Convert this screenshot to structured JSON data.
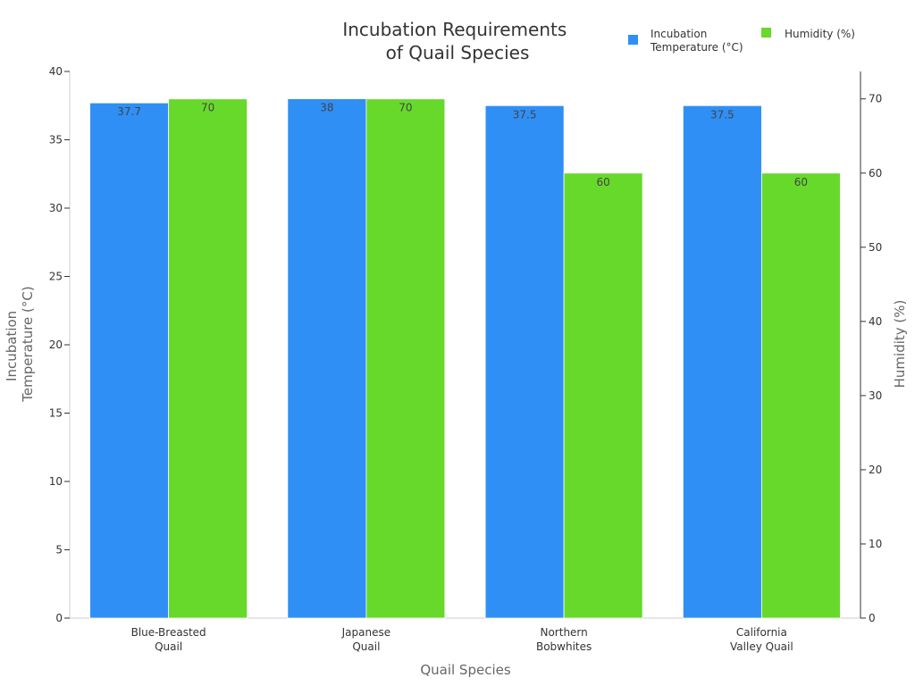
{
  "chart_data": {
    "type": "bar",
    "title": "Incubation Requirements of Quail Species",
    "title_lines": [
      "Incubation Requirements",
      "of Quail Species"
    ],
    "xlabel": "Quail Species",
    "categories": [
      "Blue-Breasted Quail",
      "Japanese Quail",
      "Northern Bobwhites",
      "California Valley Quail"
    ],
    "category_lines": [
      [
        "Blue-Breasted",
        "Quail"
      ],
      [
        "Japanese",
        "Quail"
      ],
      [
        "Northern",
        "Bobwhites"
      ],
      [
        "California",
        "Valley Quail"
      ]
    ],
    "series": [
      {
        "name": "Incubation Temperature (°C)",
        "legend_lines": [
          "Incubation",
          "Temperature (°C)"
        ],
        "axis": "left",
        "color": "#2f8ff5",
        "values": [
          37.7,
          38,
          37.5,
          37.5
        ]
      },
      {
        "name": "Humidity (%)",
        "legend_lines": [
          "Humidity (%)"
        ],
        "axis": "right",
        "color": "#66d92b",
        "values": [
          70,
          70,
          60,
          60
        ]
      }
    ],
    "y_left": {
      "label": "Incubation Temperature (°C)",
      "label_lines": [
        "Incubation",
        "Temperature (°C)"
      ],
      "ylim": [
        0,
        40
      ],
      "ticks": [
        0,
        5,
        10,
        15,
        20,
        25,
        30,
        35,
        40
      ]
    },
    "y_right": {
      "label": "Humidity (%)",
      "ylim": [
        0,
        73.7
      ],
      "ticks": [
        0,
        10,
        20,
        30,
        40,
        50,
        60,
        70
      ]
    },
    "legend_position": "top-right",
    "grid": false
  }
}
